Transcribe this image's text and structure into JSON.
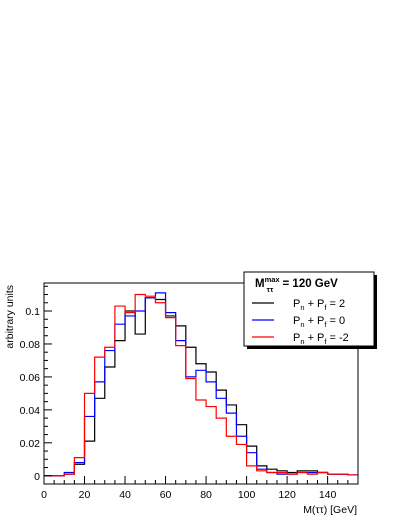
{
  "chart_data": {
    "type": "line",
    "style": "step-histogram",
    "title": "",
    "xlabel": "M(ττ) [GeV]",
    "ylabel": "arbitrary units",
    "xlim": [
      0,
      155
    ],
    "ylim": [
      -0.005,
      0.117
    ],
    "x_ticks": [
      0,
      20,
      40,
      60,
      80,
      100,
      120,
      140
    ],
    "x_tick_labels": [
      "0",
      "20",
      "40",
      "60",
      "80",
      "100",
      "120",
      "140"
    ],
    "y_ticks": [
      0,
      0.02,
      0.04,
      0.06,
      0.08,
      0.1
    ],
    "y_tick_labels": [
      "0",
      "0.02",
      "0.04",
      "0.06",
      "0.08",
      "0.1"
    ],
    "bin_edges": [
      0,
      5,
      10,
      15,
      20,
      25,
      30,
      35,
      40,
      45,
      50,
      55,
      60,
      65,
      70,
      75,
      80,
      85,
      90,
      95,
      100,
      105,
      110,
      115,
      120,
      125,
      130,
      135,
      140,
      145,
      150,
      155
    ],
    "legend": {
      "title": {
        "main": "M",
        "sup": "max",
        "sub": "ττ",
        "rest": " = 120 GeV"
      },
      "placement": "top-right",
      "entries": [
        {
          "main": "P",
          "s1": "n",
          "mid": " + P",
          "s2": "f",
          "value": " =  2"
        },
        {
          "main": "P",
          "s1": "n",
          "mid": " + P",
          "s2": "f",
          "value": " =  0"
        },
        {
          "main": "P",
          "s1": "n",
          "mid": " + P",
          "s2": "f",
          "value": " = -2"
        }
      ]
    },
    "series": [
      {
        "color": "#000000",
        "values": [
          0,
          0,
          0.001,
          0.007,
          0.021,
          0.047,
          0.066,
          0.082,
          0.1,
          0.086,
          0.108,
          0.107,
          0.097,
          0.091,
          0.078,
          0.068,
          0.063,
          0.052,
          0.043,
          0.031,
          0.018,
          0.006,
          0.004,
          0.003,
          0.002,
          0.003,
          0.003,
          0.002,
          0.001,
          0.001,
          0.0005
        ]
      },
      {
        "color": "#0000ff",
        "values": [
          0,
          0,
          0.002,
          0.008,
          0.036,
          0.057,
          0.076,
          0.092,
          0.097,
          0.1,
          0.108,
          0.111,
          0.099,
          0.082,
          0.06,
          0.064,
          0.057,
          0.047,
          0.038,
          0.024,
          0.014,
          0.004,
          0.002,
          0.001,
          0.001,
          0.002,
          0.002,
          0.002,
          0.001,
          0.001,
          0.0005
        ]
      },
      {
        "color": "#ff0000",
        "values": [
          0,
          0,
          0.001,
          0.011,
          0.05,
          0.072,
          0.078,
          0.103,
          0.099,
          0.11,
          0.109,
          0.105,
          0.096,
          0.079,
          0.059,
          0.046,
          0.042,
          0.035,
          0.024,
          0.019,
          0.006,
          0.003,
          0.002,
          0.002,
          0.001,
          0.002,
          0.001,
          0.002,
          0.001,
          0.001,
          0.0005
        ]
      }
    ]
  }
}
